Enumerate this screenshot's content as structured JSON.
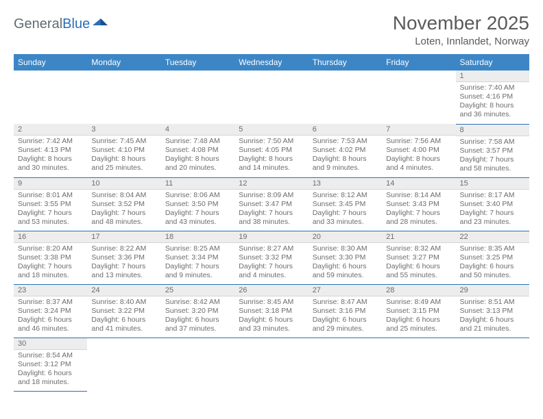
{
  "logo": {
    "general": "General",
    "blue": "Blue"
  },
  "title": "November 2025",
  "location": "Loten, Innlandet, Norway",
  "colors": {
    "header_bg": "#3d86c6",
    "row_divider": "#2a6fb5",
    "daynum_bg": "#ededed",
    "text": "#5a5a5a"
  },
  "weekdays": [
    "Sunday",
    "Monday",
    "Tuesday",
    "Wednesday",
    "Thursday",
    "Friday",
    "Saturday"
  ],
  "weeks": [
    [
      null,
      null,
      null,
      null,
      null,
      null,
      {
        "n": "1",
        "sr": "Sunrise: 7:40 AM",
        "ss": "Sunset: 4:16 PM",
        "dl": "Daylight: 8 hours and 36 minutes."
      }
    ],
    [
      {
        "n": "2",
        "sr": "Sunrise: 7:42 AM",
        "ss": "Sunset: 4:13 PM",
        "dl": "Daylight: 8 hours and 30 minutes."
      },
      {
        "n": "3",
        "sr": "Sunrise: 7:45 AM",
        "ss": "Sunset: 4:10 PM",
        "dl": "Daylight: 8 hours and 25 minutes."
      },
      {
        "n": "4",
        "sr": "Sunrise: 7:48 AM",
        "ss": "Sunset: 4:08 PM",
        "dl": "Daylight: 8 hours and 20 minutes."
      },
      {
        "n": "5",
        "sr": "Sunrise: 7:50 AM",
        "ss": "Sunset: 4:05 PM",
        "dl": "Daylight: 8 hours and 14 minutes."
      },
      {
        "n": "6",
        "sr": "Sunrise: 7:53 AM",
        "ss": "Sunset: 4:02 PM",
        "dl": "Daylight: 8 hours and 9 minutes."
      },
      {
        "n": "7",
        "sr": "Sunrise: 7:56 AM",
        "ss": "Sunset: 4:00 PM",
        "dl": "Daylight: 8 hours and 4 minutes."
      },
      {
        "n": "8",
        "sr": "Sunrise: 7:58 AM",
        "ss": "Sunset: 3:57 PM",
        "dl": "Daylight: 7 hours and 58 minutes."
      }
    ],
    [
      {
        "n": "9",
        "sr": "Sunrise: 8:01 AM",
        "ss": "Sunset: 3:55 PM",
        "dl": "Daylight: 7 hours and 53 minutes."
      },
      {
        "n": "10",
        "sr": "Sunrise: 8:04 AM",
        "ss": "Sunset: 3:52 PM",
        "dl": "Daylight: 7 hours and 48 minutes."
      },
      {
        "n": "11",
        "sr": "Sunrise: 8:06 AM",
        "ss": "Sunset: 3:50 PM",
        "dl": "Daylight: 7 hours and 43 minutes."
      },
      {
        "n": "12",
        "sr": "Sunrise: 8:09 AM",
        "ss": "Sunset: 3:47 PM",
        "dl": "Daylight: 7 hours and 38 minutes."
      },
      {
        "n": "13",
        "sr": "Sunrise: 8:12 AM",
        "ss": "Sunset: 3:45 PM",
        "dl": "Daylight: 7 hours and 33 minutes."
      },
      {
        "n": "14",
        "sr": "Sunrise: 8:14 AM",
        "ss": "Sunset: 3:43 PM",
        "dl": "Daylight: 7 hours and 28 minutes."
      },
      {
        "n": "15",
        "sr": "Sunrise: 8:17 AM",
        "ss": "Sunset: 3:40 PM",
        "dl": "Daylight: 7 hours and 23 minutes."
      }
    ],
    [
      {
        "n": "16",
        "sr": "Sunrise: 8:20 AM",
        "ss": "Sunset: 3:38 PM",
        "dl": "Daylight: 7 hours and 18 minutes."
      },
      {
        "n": "17",
        "sr": "Sunrise: 8:22 AM",
        "ss": "Sunset: 3:36 PM",
        "dl": "Daylight: 7 hours and 13 minutes."
      },
      {
        "n": "18",
        "sr": "Sunrise: 8:25 AM",
        "ss": "Sunset: 3:34 PM",
        "dl": "Daylight: 7 hours and 9 minutes."
      },
      {
        "n": "19",
        "sr": "Sunrise: 8:27 AM",
        "ss": "Sunset: 3:32 PM",
        "dl": "Daylight: 7 hours and 4 minutes."
      },
      {
        "n": "20",
        "sr": "Sunrise: 8:30 AM",
        "ss": "Sunset: 3:30 PM",
        "dl": "Daylight: 6 hours and 59 minutes."
      },
      {
        "n": "21",
        "sr": "Sunrise: 8:32 AM",
        "ss": "Sunset: 3:27 PM",
        "dl": "Daylight: 6 hours and 55 minutes."
      },
      {
        "n": "22",
        "sr": "Sunrise: 8:35 AM",
        "ss": "Sunset: 3:25 PM",
        "dl": "Daylight: 6 hours and 50 minutes."
      }
    ],
    [
      {
        "n": "23",
        "sr": "Sunrise: 8:37 AM",
        "ss": "Sunset: 3:24 PM",
        "dl": "Daylight: 6 hours and 46 minutes."
      },
      {
        "n": "24",
        "sr": "Sunrise: 8:40 AM",
        "ss": "Sunset: 3:22 PM",
        "dl": "Daylight: 6 hours and 41 minutes."
      },
      {
        "n": "25",
        "sr": "Sunrise: 8:42 AM",
        "ss": "Sunset: 3:20 PM",
        "dl": "Daylight: 6 hours and 37 minutes."
      },
      {
        "n": "26",
        "sr": "Sunrise: 8:45 AM",
        "ss": "Sunset: 3:18 PM",
        "dl": "Daylight: 6 hours and 33 minutes."
      },
      {
        "n": "27",
        "sr": "Sunrise: 8:47 AM",
        "ss": "Sunset: 3:16 PM",
        "dl": "Daylight: 6 hours and 29 minutes."
      },
      {
        "n": "28",
        "sr": "Sunrise: 8:49 AM",
        "ss": "Sunset: 3:15 PM",
        "dl": "Daylight: 6 hours and 25 minutes."
      },
      {
        "n": "29",
        "sr": "Sunrise: 8:51 AM",
        "ss": "Sunset: 3:13 PM",
        "dl": "Daylight: 6 hours and 21 minutes."
      }
    ],
    [
      {
        "n": "30",
        "sr": "Sunrise: 8:54 AM",
        "ss": "Sunset: 3:12 PM",
        "dl": "Daylight: 6 hours and 18 minutes."
      },
      null,
      null,
      null,
      null,
      null,
      null
    ]
  ]
}
